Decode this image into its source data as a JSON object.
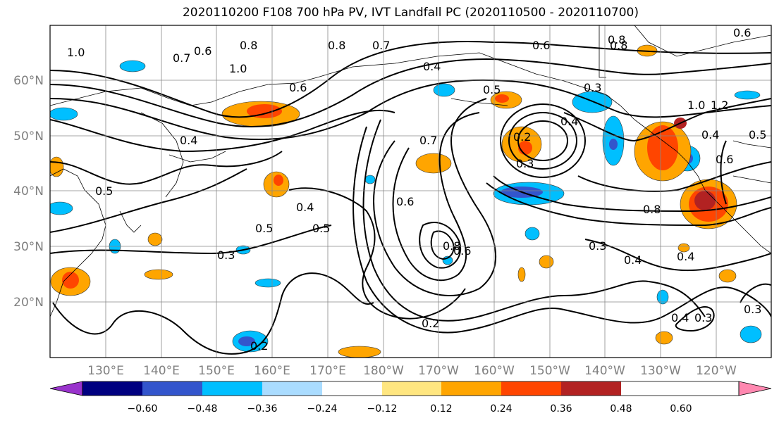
{
  "title": "2020110200 F108 700 hPa PV, IVT Landfall PC (2020110500 - 2020110700)",
  "lat_labels": [
    "60°N",
    "50°N",
    "40°N",
    "30°N",
    "20°N"
  ],
  "lon_labels": [
    "130°E",
    "140°E",
    "150°E",
    "160°E",
    "170°E",
    "180°W",
    "170°W",
    "160°W",
    "150°W",
    "140°W",
    "130°W",
    "120°W"
  ],
  "contour_labels": [
    "1.0",
    "0.7",
    "0.6",
    "0.8",
    "1.0",
    "0.8",
    "0.7",
    "0.4",
    "0.6",
    "0.6",
    "0.5",
    "0.8",
    "0.4",
    "0.4",
    "0.3",
    "0.7",
    "0.2",
    "0.3",
    "0.5",
    "0.4",
    "0.5",
    "0.5",
    "0.3",
    "0.6",
    "0.8",
    "0.6",
    "0.2",
    "0.2",
    "0.3",
    "0.4",
    "0.8",
    "1.0",
    "1.2",
    "0.4",
    "0.5",
    "0.6",
    "0.4",
    "0.4",
    "0.3",
    "0.3",
    "0.8",
    "0.6"
  ],
  "colorbar": {
    "colors": [
      "#9933cc",
      "#000080",
      "#3355cc",
      "#00bfff",
      "#aadcff",
      "#ffffff",
      "#ffe680",
      "#ffa500",
      "#ff4500",
      "#b22222",
      "#ff88b0"
    ],
    "tick_labels": [
      "−0.60",
      "−0.48",
      "−0.36",
      "−0.24",
      "−0.12",
      "0.12",
      "0.24",
      "0.36",
      "0.48",
      "0.60"
    ]
  }
}
